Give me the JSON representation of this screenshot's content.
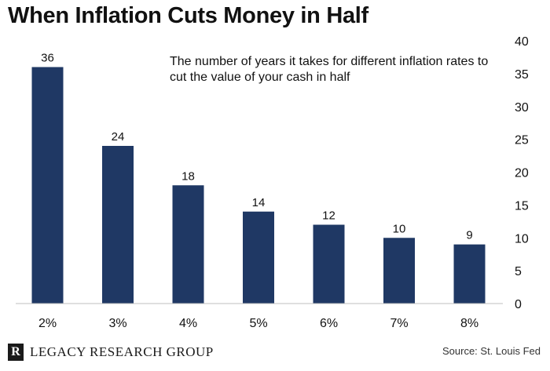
{
  "header": {
    "title": "When Inflation Cuts Money in Half"
  },
  "chart_data": {
    "type": "bar",
    "title": "When Inflation Cuts Money in Half",
    "subtitle": "The number of years it takes for different inflation rates to cut the value of your cash in half",
    "categories": [
      "2%",
      "3%",
      "4%",
      "5%",
      "6%",
      "7%",
      "8%"
    ],
    "values": [
      36,
      24,
      18,
      14,
      12,
      10,
      9
    ],
    "xlabel": "",
    "ylabel": "",
    "ylim": [
      0,
      40
    ],
    "yticks": [
      0,
      5,
      10,
      15,
      20,
      25,
      30,
      35,
      40
    ],
    "y_axis_side": "right",
    "grid": false,
    "legend": "none",
    "bar_color": "#1f3864"
  },
  "footer": {
    "logo_letter": "R",
    "brand": "LEGACY RESEARCH GROUP",
    "source": "Source: St. Louis Fed"
  }
}
